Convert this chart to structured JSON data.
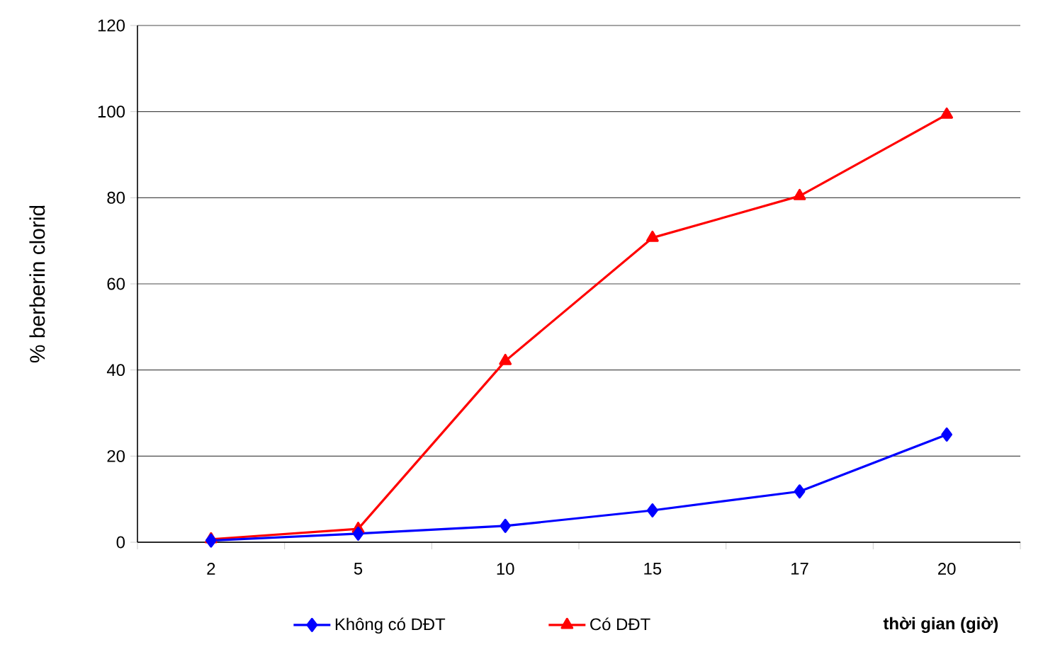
{
  "chart_data": {
    "type": "line",
    "xlabel": "thời gian (giờ)",
    "ylabel": "% berberin clorid",
    "categories": [
      "2",
      "5",
      "10",
      "15",
      "17",
      "20"
    ],
    "series": [
      {
        "name": "Không có DĐT",
        "color": "#0000ff",
        "marker": "diamond",
        "values": [
          0.4,
          2,
          3.8,
          7.4,
          11.8,
          25
        ]
      },
      {
        "name": "Có DĐT",
        "color": "#ff0000",
        "marker": "triangle",
        "values": [
          0.7,
          3.1,
          42.1,
          70.7,
          80.4,
          99.3
        ]
      }
    ],
    "ylim": [
      0,
      120
    ],
    "yticks": [
      0,
      20,
      40,
      60,
      80,
      100,
      120
    ],
    "grid": "y",
    "legend": "bottom",
    "line_style": "solid"
  }
}
